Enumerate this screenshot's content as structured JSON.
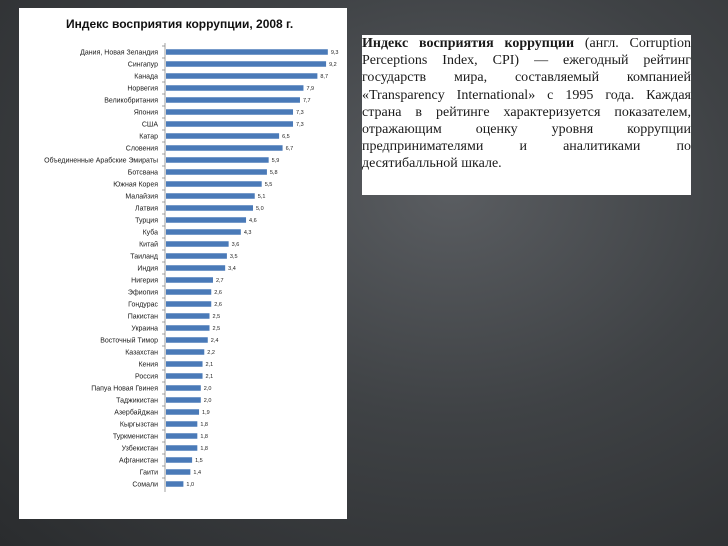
{
  "chart_data": {
    "type": "bar",
    "orientation": "horizontal",
    "title": "Индекс восприятия коррупции, 2008 г.",
    "categories": [
      "Дания, Новая Зеландия",
      "Сингапур",
      "Канада",
      "Норвегия",
      "Великобритания",
      "Япония",
      "США",
      "Катар",
      "Словения",
      "Объединенные Арабские Эмираты",
      "Ботсвана",
      "Южная Корея",
      "Малайзия",
      "Латвия",
      "Турция",
      "Куба",
      "Китай",
      "Таиланд",
      "Индия",
      "Нигерия",
      "Эфиопия",
      "Гондурас",
      "Пакистан",
      "Украина",
      "Восточный Тимор",
      "Казахстан",
      "Кения",
      "Россия",
      "Папуа Новая Гвинея",
      "Таджикистан",
      "Азербайджан",
      "Кыргызстан",
      "Туркменистан",
      "Узбекистан",
      "Афганистан",
      "Гаити",
      "Сомали"
    ],
    "values": [
      9.3,
      9.2,
      8.7,
      7.9,
      7.7,
      7.3,
      7.3,
      6.5,
      6.7,
      5.9,
      5.8,
      5.5,
      5.1,
      5.0,
      4.6,
      4.3,
      3.6,
      3.5,
      3.4,
      2.7,
      2.6,
      2.6,
      2.5,
      2.5,
      2.4,
      2.2,
      2.1,
      2.1,
      2.0,
      2.0,
      1.9,
      1.8,
      1.8,
      1.8,
      1.5,
      1.4,
      1.0
    ],
    "value_labels": [
      "9,3",
      "9,2",
      "8,7",
      "7,9",
      "7,7",
      "7,3",
      "7,3",
      "6,5",
      "6,7",
      "5,9",
      "5,8",
      "5,5",
      "5,1",
      "5,0",
      "4,6",
      "4,3",
      "3,6",
      "3,5",
      "3,4",
      "2,7",
      "2,6",
      "2,6",
      "2,5",
      "2,5",
      "2,4",
      "2,2",
      "2,1",
      "2,1",
      "2,0",
      "2,0",
      "1,9",
      "1,8",
      "1,8",
      "1,8",
      "1,5",
      "1,4",
      "1,0"
    ],
    "xlim": [
      0,
      10
    ],
    "bar_color": "#4a7ab8",
    "grid": false,
    "legend": "none"
  },
  "description": {
    "bold_term": "Индекс восприятия коррупции",
    "text": " (англ. Corruption Perceptions Index, CPI) — ежегодный рейтинг государств мира, составляемый компанией «Transparency International» с 1995 года. Каждая страна в рейтинге характеризуется показателем, отражающим оценку уровня коррупции предпринимателями и аналитиками по десятибалльной шкале."
  }
}
